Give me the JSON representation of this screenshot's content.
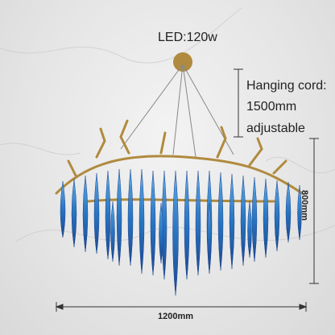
{
  "specs": {
    "power": "LED:120w",
    "cord_line1": "Hanging cord:",
    "cord_line2": "1500mm",
    "cord_line3": "adjustable",
    "width": "1200mm",
    "height": "800mm"
  },
  "colors": {
    "crystal": "#1e6fc0",
    "crystal_dark": "#123f8c",
    "brass": "#b08a3e",
    "marble": "#e8e8e8"
  }
}
